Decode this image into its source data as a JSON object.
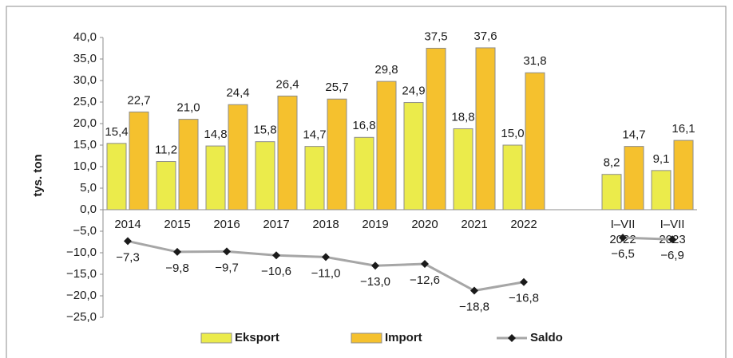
{
  "chart_data": {
    "type": "bar",
    "y_axis_label": "tys. ton",
    "categories": [
      "2014",
      "2015",
      "2016",
      "2017",
      "2018",
      "2019",
      "2020",
      "2021",
      "2022",
      null,
      "I–VII 2022",
      "I–VII 2023"
    ],
    "series": [
      {
        "name": "Eksport",
        "type": "bar",
        "color": "#ebeb4b",
        "values": [
          15.4,
          11.2,
          14.8,
          15.8,
          14.7,
          16.8,
          24.9,
          18.8,
          15.0,
          null,
          8.2,
          9.1
        ],
        "value_labels": [
          "15,4",
          "11,2",
          "14,8",
          "15,8",
          "14,7",
          "16,8",
          "24,9",
          "18,8",
          "15,0",
          null,
          "8,2",
          "9,1"
        ]
      },
      {
        "name": "Import",
        "type": "bar",
        "color": "#f5c12e",
        "values": [
          22.7,
          21.0,
          24.4,
          26.4,
          25.7,
          29.8,
          37.5,
          37.6,
          31.8,
          null,
          14.7,
          16.1
        ],
        "value_labels": [
          "22,7",
          "21,0",
          "24,4",
          "26,4",
          "25,7",
          "29,8",
          "37,5",
          "37,6",
          "31,8",
          null,
          "14,7",
          "16,1"
        ]
      },
      {
        "name": "Saldo",
        "type": "line",
        "color": "#a6a6a6",
        "marker_color": "#1a1a1a",
        "values": [
          -7.3,
          -9.8,
          -9.7,
          -10.6,
          -11.0,
          -13.0,
          -12.6,
          -18.8,
          -16.8,
          null,
          -6.5,
          -6.9
        ],
        "value_labels": [
          "−7,3",
          "−9,8",
          "−9,7",
          "−10,6",
          "−11,0",
          "−13,0",
          "−12,6",
          "−18,8",
          "−16,8",
          null,
          "−6,5",
          "−6,9"
        ]
      }
    ],
    "ylim": [
      -25,
      40
    ],
    "yticks": [
      {
        "value": -25,
        "label": "−25,0"
      },
      {
        "value": -20,
        "label": "−20,0"
      },
      {
        "value": -15,
        "label": "−15,0"
      },
      {
        "value": -10,
        "label": "−10,0"
      },
      {
        "value": -5,
        "label": "−5,0"
      },
      {
        "value": 0,
        "label": "0,0"
      },
      {
        "value": 5,
        "label": "5,0"
      },
      {
        "value": 10,
        "label": "10,0"
      },
      {
        "value": 15,
        "label": "15,0"
      },
      {
        "value": 20,
        "label": "20,0"
      },
      {
        "value": 25,
        "label": "25,0"
      },
      {
        "value": 30,
        "label": "30,0"
      },
      {
        "value": 35,
        "label": "35,0"
      },
      {
        "value": 40,
        "label": "40,0"
      }
    ],
    "grid": false,
    "legend": "bottom"
  }
}
